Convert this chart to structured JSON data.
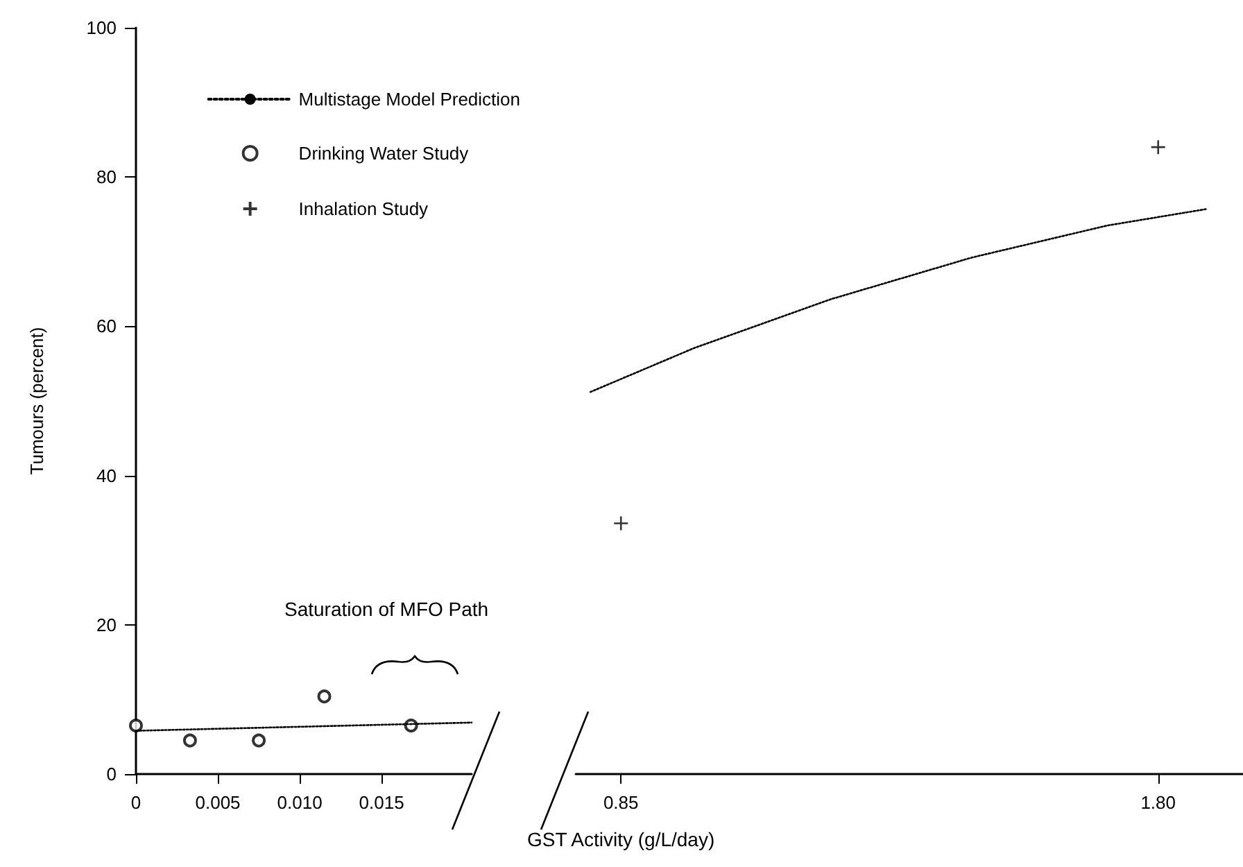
{
  "chart_data": [
    {
      "type": "scatter",
      "ylabel": "Tumours (percent)",
      "annotations": [
        "Saturation of MFO Path"
      ],
      "xlim": [
        0,
        0.0205
      ],
      "xticks": [
        0,
        0.005,
        {
          "value": 0.01,
          "label": "0.010"
        },
        0.015
      ],
      "ylim": [
        0,
        100
      ],
      "yticks": [
        0,
        20,
        40,
        60,
        80,
        100
      ],
      "legend": "top right",
      "series": [
        {
          "name": "Multistage Model Prediction",
          "type": "line",
          "line_style": "dotted",
          "marker": "none",
          "color": "#000000",
          "x": [
            0,
            0.0205
          ],
          "values": [
            5.8,
            6.9
          ]
        },
        {
          "name": "Drinking Water Study",
          "marker": "circle",
          "color": "#000000",
          "x": [
            0,
            0.0033,
            0.0075,
            0.0115,
            0.0168
          ],
          "values": [
            6.5,
            4.5,
            4.5,
            10.4,
            6.5
          ]
        }
      ]
    },
    {
      "type": "scatter",
      "xlabel": "GST Activity (g/L/day)",
      "xlim": [
        0.77,
        1.95
      ],
      "xticks": [
        0.85,
        {
          "value": 1.8,
          "label": "1.80"
        }
      ],
      "ylim": [
        0,
        100
      ],
      "tick_labels": "x",
      "series": [
        {
          "name": "Multistage Model Prediction",
          "type": "line",
          "line_style": "dotted",
          "marker": "none",
          "color": "#000000",
          "x": [
            0.796,
            0.98,
            1.22,
            1.47,
            1.71,
            1.885
          ],
          "values": [
            51.2,
            57.1,
            63.6,
            69.2,
            73.5,
            75.7
          ]
        },
        {
          "name": "Inhalation Study",
          "marker": "cross",
          "color": "#000000",
          "x": [
            0.85,
            1.8
          ],
          "values": [
            33.6,
            84
          ]
        }
      ]
    }
  ]
}
